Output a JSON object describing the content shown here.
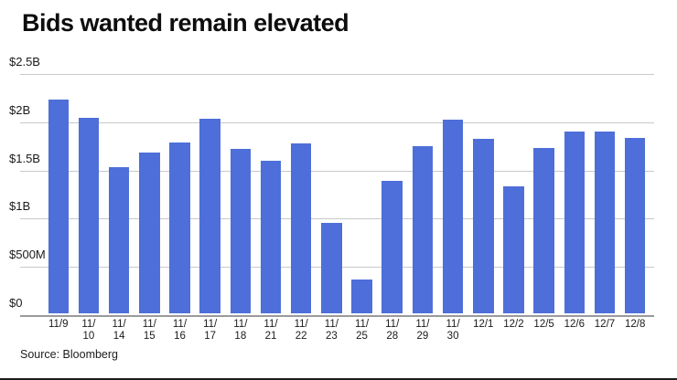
{
  "title": "Bids wanted remain elevated",
  "source": "Source: Bloomberg",
  "colors": {
    "bar": "#4e6fd9",
    "gridline": "#c9c9c9",
    "zero_axis": "#9a9a9a",
    "title_text": "#0d0d0d",
    "label_text": "#1a1a1a",
    "background": "#ffffff"
  },
  "chart_data": {
    "type": "bar",
    "title": "Bids wanted remain elevated",
    "xlabel": "",
    "ylabel": "",
    "unit": "USD",
    "categories": [
      "11/9",
      "11/10",
      "11/14",
      "11/15",
      "11/16",
      "11/17",
      "11/18",
      "11/21",
      "11/22",
      "11/23",
      "11/25",
      "11/28",
      "11/29",
      "11/30",
      "12/1",
      "12/2",
      "12/5",
      "12/6",
      "12/7",
      "12/8"
    ],
    "values_billions": [
      2.22,
      2.03,
      1.52,
      1.67,
      1.77,
      2.02,
      1.7,
      1.58,
      1.76,
      0.94,
      0.35,
      1.37,
      1.73,
      2.01,
      1.81,
      1.32,
      1.71,
      1.88,
      1.88,
      1.82
    ],
    "y_tick_labels": [
      "$2.5B",
      "$2B",
      "$1.5B",
      "$1B",
      "$500M",
      "$0"
    ],
    "y_tick_values": [
      2.5,
      2.0,
      1.5,
      1.0,
      0.5,
      0
    ],
    "ylim": [
      0,
      2.5
    ],
    "grid": true,
    "legend": "none",
    "source_note": "Source: Bloomberg"
  }
}
